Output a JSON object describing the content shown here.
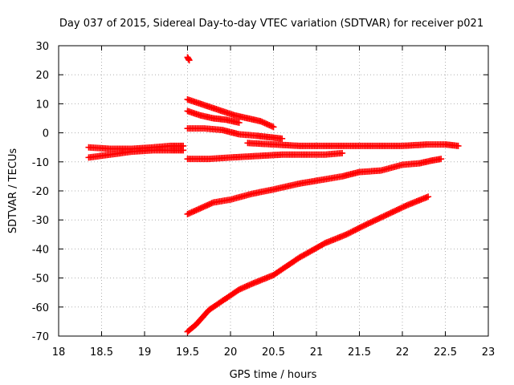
{
  "chart_data": {
    "type": "scatter",
    "title": "Day 037 of 2015, Sidereal Day-to-day VTEC variation (SDTVAR) for receiver p021",
    "xlabel": "GPS time / hours",
    "ylabel": "SDTVAR / TECUs",
    "xlim": [
      18,
      23
    ],
    "ylim": [
      -70,
      30
    ],
    "x_ticks": [
      "18",
      "18.5",
      "19",
      "19.5",
      "20",
      "20.5",
      "21",
      "21.5",
      "22",
      "22.5",
      "23"
    ],
    "y_ticks": [
      "30",
      "20",
      "10",
      "0",
      "-10",
      "-20",
      "-30",
      "-40",
      "-50",
      "-60",
      "-70"
    ],
    "grid": true,
    "marker": "plus",
    "color": "#ff0000",
    "series": [
      {
        "x": [
          18.35,
          18.6,
          18.85,
          19.1,
          19.3,
          19.45
        ],
        "y": [
          -5,
          -5.5,
          -5.5,
          -5,
          -4.5,
          -4.5
        ]
      },
      {
        "x": [
          18.35,
          18.6,
          18.85,
          19.1,
          19.3,
          19.45
        ],
        "y": [
          -8.5,
          -7.5,
          -6.5,
          -6,
          -6,
          -6
        ]
      },
      {
        "x": [
          19.5,
          19.52
        ],
        "y": [
          26,
          25
        ]
      },
      {
        "x": [
          19.5,
          19.6,
          19.75,
          19.9,
          20.05,
          20.2,
          20.35,
          20.5
        ],
        "y": [
          11.5,
          10.5,
          9,
          7.5,
          6,
          5,
          4,
          2
        ]
      },
      {
        "x": [
          19.5,
          19.65,
          19.8,
          19.95,
          20.1
        ],
        "y": [
          7.5,
          6,
          5,
          4.5,
          3.5
        ]
      },
      {
        "x": [
          19.5,
          19.7,
          19.9,
          20.1,
          20.3,
          20.45,
          20.6
        ],
        "y": [
          1.5,
          1.5,
          1,
          -0.5,
          -1,
          -1.5,
          -2
        ]
      },
      {
        "x": [
          20.2,
          20.5,
          20.8,
          21.1,
          21.4,
          21.7,
          22.0,
          22.3,
          22.5,
          22.65
        ],
        "y": [
          -3.5,
          -4,
          -4.5,
          -4.5,
          -4.5,
          -4.5,
          -4.5,
          -4,
          -4,
          -4.5
        ]
      },
      {
        "x": [
          19.5,
          19.75,
          20.0,
          20.3,
          20.6,
          20.9,
          21.1,
          21.3
        ],
        "y": [
          -9,
          -9,
          -8.5,
          -8,
          -7.5,
          -7.5,
          -7.5,
          -7
        ]
      },
      {
        "x": [
          19.5,
          19.65,
          19.8,
          20.0,
          20.25,
          20.5,
          20.8,
          21.1,
          21.3,
          21.5,
          21.75,
          22.0,
          22.2,
          22.35,
          22.45
        ],
        "y": [
          -28,
          -26,
          -24,
          -23,
          -21,
          -19.5,
          -17.5,
          -16,
          -15,
          -13.5,
          -13,
          -11,
          -10.5,
          -9.5,
          -9
        ]
      },
      {
        "x": [
          19.5,
          19.6,
          19.75,
          19.95,
          20.1,
          20.25,
          20.5,
          20.8,
          21.1,
          21.35,
          21.55,
          21.8,
          22.05,
          22.3
        ],
        "y": [
          -68.5,
          -66,
          -61,
          -57,
          -54,
          -52,
          -49,
          -43,
          -38,
          -35,
          -32,
          -28.5,
          -25,
          -22
        ]
      }
    ]
  }
}
